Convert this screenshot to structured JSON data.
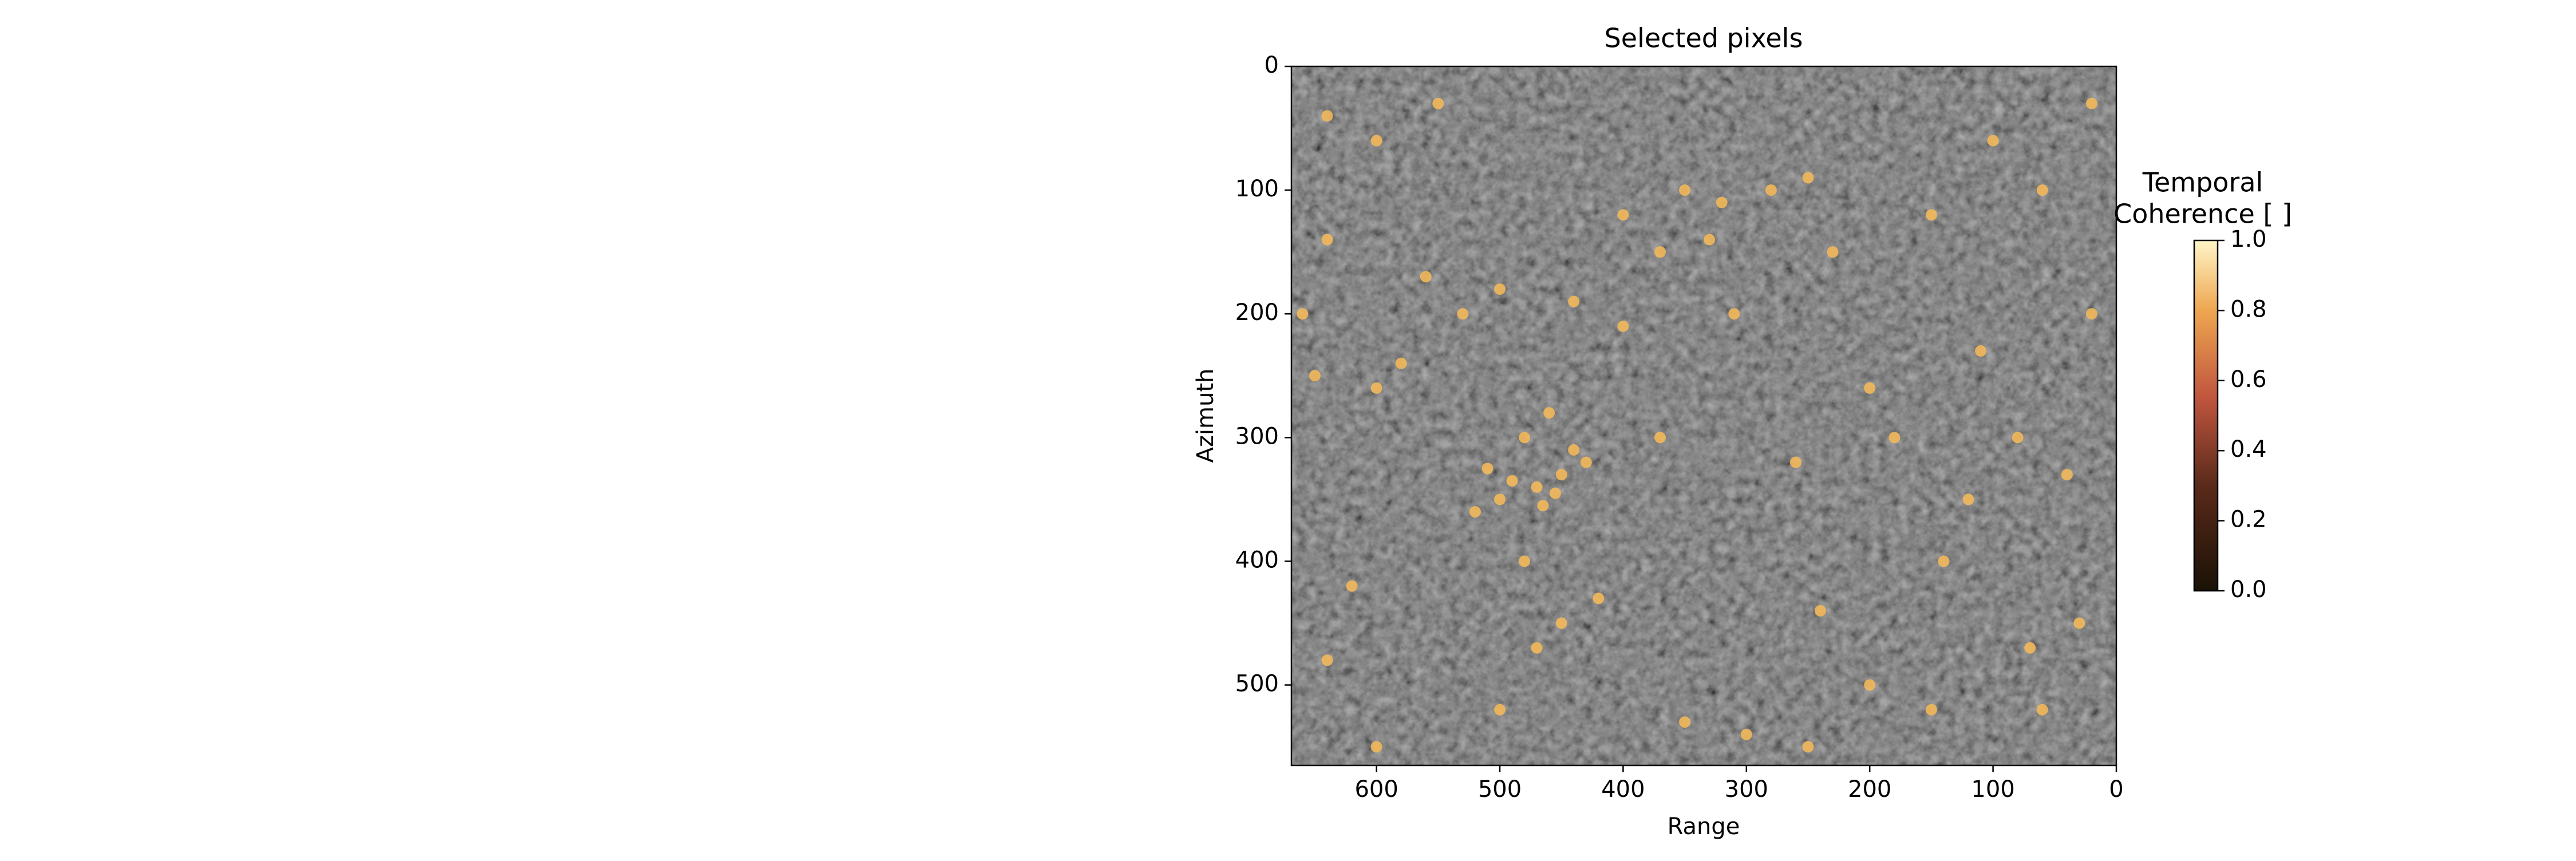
{
  "chart_data": {
    "type": "scatter",
    "title": "Selected pixels",
    "xlabel": "Range",
    "ylabel": "Azimuth",
    "xlim": [
      669,
      0
    ],
    "ylim": [
      565,
      0
    ],
    "xticks": [
      600,
      500,
      400,
      300,
      200,
      100,
      0
    ],
    "yticks": [
      0,
      100,
      200,
      300,
      400,
      500
    ],
    "series": [
      {
        "color": "#f2b85a",
        "x": [
          470,
          500,
          450,
          520,
          430,
          480,
          460,
          640,
          600,
          550,
          400,
          370,
          320,
          280,
          250,
          150,
          100,
          60,
          20,
          30,
          70,
          150,
          200,
          250,
          300,
          350,
          600,
          640,
          620,
          650,
          660,
          600,
          500,
          530,
          450,
          470,
          420,
          350,
          330,
          200,
          180,
          120,
          80,
          40,
          140,
          240,
          560,
          580,
          440,
          400,
          230,
          110,
          60,
          20,
          640,
          500,
          480,
          370,
          260,
          310,
          490,
          455,
          510,
          440,
          465
        ],
        "y": [
          340,
          350,
          330,
          360,
          320,
          300,
          280,
          40,
          60,
          30,
          120,
          150,
          110,
          100,
          90,
          120,
          60,
          100,
          200,
          450,
          470,
          520,
          500,
          550,
          540,
          530,
          550,
          480,
          420,
          250,
          200,
          260,
          180,
          200,
          450,
          470,
          430,
          100,
          140,
          260,
          300,
          350,
          300,
          330,
          400,
          440,
          170,
          240,
          190,
          210,
          150,
          230,
          520,
          30,
          140,
          520,
          400,
          300,
          320,
          200,
          335,
          345,
          325,
          310,
          355
        ]
      }
    ],
    "colorbar_title": [
      "Temporal",
      "Coherence [ ]"
    ],
    "clim": [
      0,
      1
    ],
    "cticks": [
      {
        "value": 0,
        "label": "0.0"
      },
      0.2,
      0.4,
      0.6,
      0.8,
      {
        "value": 1,
        "label": "1.0"
      }
    ]
  }
}
